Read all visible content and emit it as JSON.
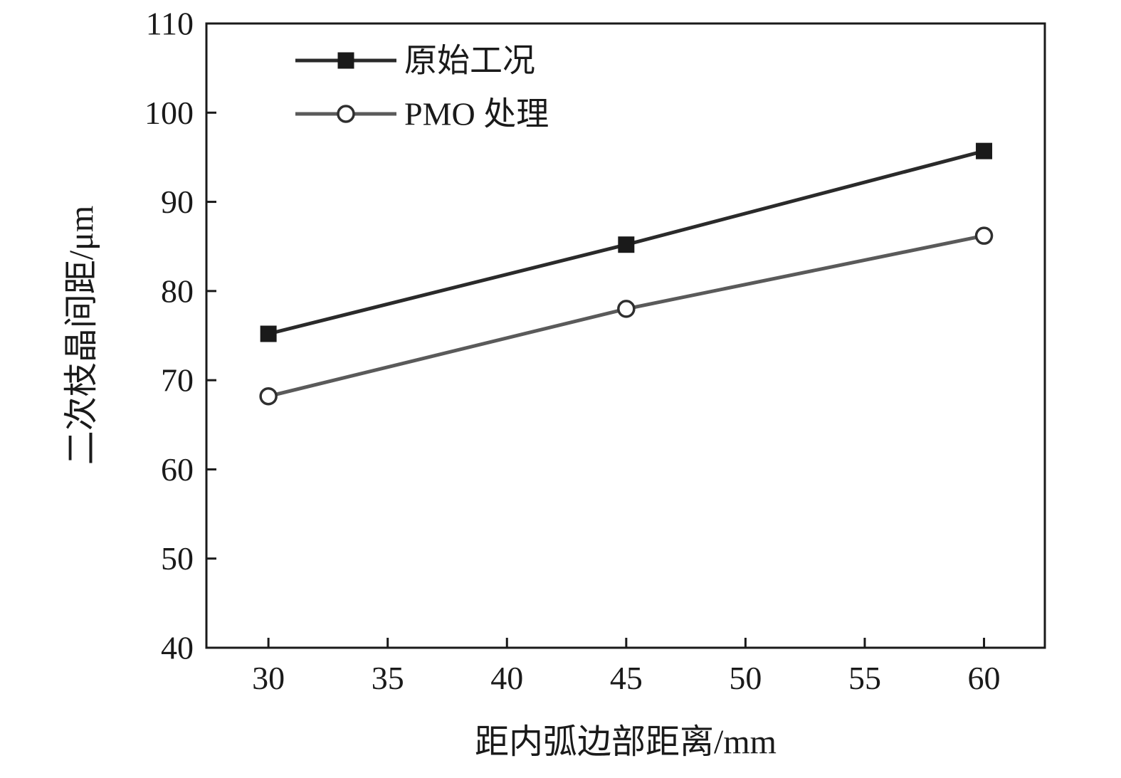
{
  "chart_data": {
    "type": "line",
    "title": "",
    "xlabel": "距内弧边部距离/mm",
    "ylabel": "二次枝晶间距/μm",
    "xlim": [
      27.4,
      62.55
    ],
    "ylim": [
      40,
      110
    ],
    "xticks": [
      30,
      35,
      40,
      45,
      50,
      55,
      60
    ],
    "yticks": [
      40,
      50,
      60,
      70,
      80,
      90,
      100,
      110
    ],
    "x": [
      30,
      45,
      60
    ],
    "series": [
      {
        "name": "原始工况",
        "marker": "square-filled",
        "line_color": "#2a2a2a",
        "marker_color": "#1a1a1a",
        "values": [
          75.2,
          85.2,
          95.7
        ]
      },
      {
        "name": "PMO 处理",
        "marker": "circle-open",
        "line_color": "#5a5a5a",
        "marker_color": "#2f2f2f",
        "values": [
          68.2,
          78.0,
          86.2
        ]
      }
    ],
    "legend_position": "top-left",
    "grid": false,
    "frame": true,
    "background_color": "#ffffff",
    "axis_color": "#1a1a1a"
  }
}
